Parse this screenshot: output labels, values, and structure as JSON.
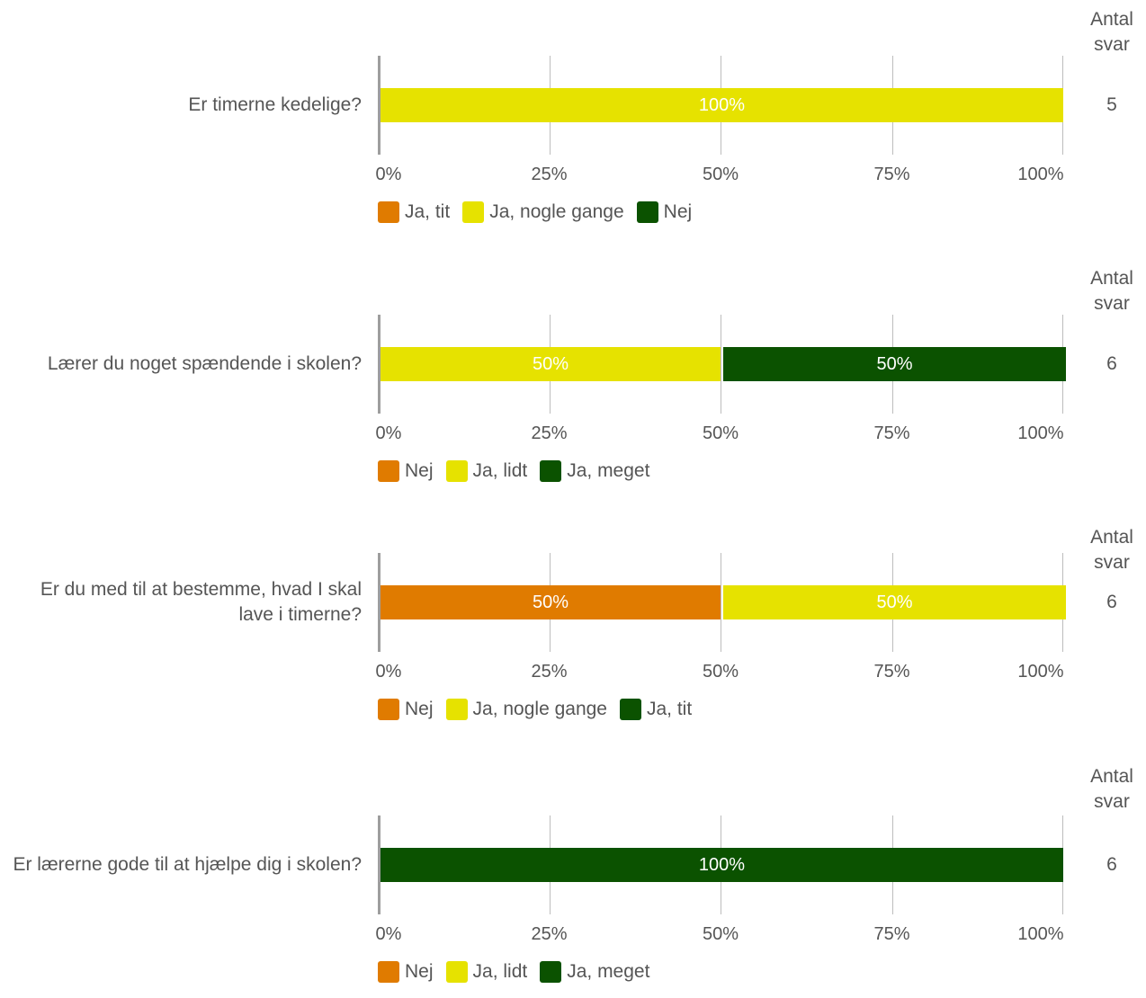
{
  "colors": {
    "orange": "#e07b00",
    "yellow": "#e6e200",
    "green": "#0b5200"
  },
  "header_label": "Antal\nsvar",
  "ticks": [
    "0%",
    "25%",
    "50%",
    "75%",
    "100%"
  ],
  "chart_data": [
    {
      "type": "bar",
      "stacked": true,
      "orientation": "horizontal",
      "category": "Er timerne kedelige?",
      "xlim": [
        0,
        100
      ],
      "series": [
        {
          "name": "Ja, tit",
          "color": "orange",
          "value": 0
        },
        {
          "name": "Ja, nogle gange",
          "color": "yellow",
          "value": 100,
          "label": "100%"
        },
        {
          "name": "Nej",
          "color": "green",
          "value": 0
        }
      ],
      "count": "5"
    },
    {
      "type": "bar",
      "stacked": true,
      "orientation": "horizontal",
      "category": "Lærer du noget spændende i skolen?",
      "xlim": [
        0,
        100
      ],
      "series": [
        {
          "name": "Nej",
          "color": "orange",
          "value": 0
        },
        {
          "name": "Ja, lidt",
          "color": "yellow",
          "value": 50,
          "label": "50%"
        },
        {
          "name": "Ja, meget",
          "color": "green",
          "value": 50,
          "label": "50%"
        }
      ],
      "count": "6"
    },
    {
      "type": "bar",
      "stacked": true,
      "orientation": "horizontal",
      "category": "Er du med til at bestemme, hvad I skal lave i timerne?",
      "xlim": [
        0,
        100
      ],
      "series": [
        {
          "name": "Nej",
          "color": "orange",
          "value": 50,
          "label": "50%"
        },
        {
          "name": "Ja, nogle gange",
          "color": "yellow",
          "value": 50,
          "label": "50%"
        },
        {
          "name": "Ja, tit",
          "color": "green",
          "value": 0
        }
      ],
      "count": "6"
    },
    {
      "type": "bar",
      "stacked": true,
      "orientation": "horizontal",
      "category": "Er lærerne gode til at hjælpe dig i skolen?",
      "xlim": [
        0,
        100
      ],
      "series": [
        {
          "name": "Nej",
          "color": "orange",
          "value": 0
        },
        {
          "name": "Ja, lidt",
          "color": "yellow",
          "value": 0
        },
        {
          "name": "Ja, meget",
          "color": "green",
          "value": 100,
          "label": "100%"
        }
      ],
      "count": "6"
    }
  ]
}
